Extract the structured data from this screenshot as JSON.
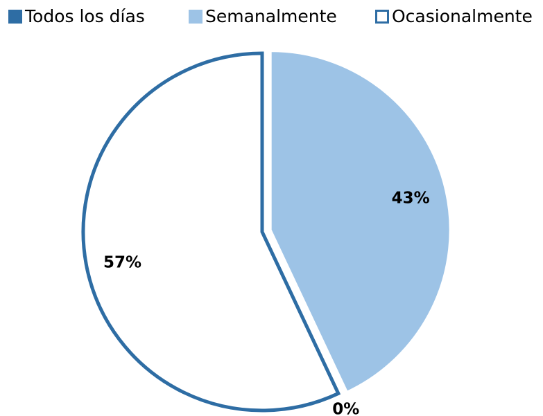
{
  "chart_data": {
    "type": "pie",
    "categories": [
      "Todos los días",
      "Semanalmente",
      "Ocasionalmente"
    ],
    "series": [
      {
        "values": [
          0,
          43,
          57
        ],
        "value_labels": [
          "0%",
          "43%",
          "57%"
        ],
        "colors": [
          "#2e6da4",
          "#9dc3e6",
          "#ffffff"
        ]
      }
    ],
    "outline_color": "#2e6da4",
    "legend": "top"
  }
}
